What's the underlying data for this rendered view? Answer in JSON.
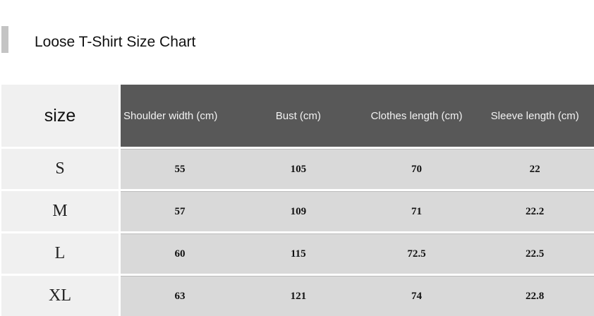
{
  "title": "Loose T-Shirt Size Chart",
  "table": {
    "size_header": "size",
    "headers": [
      "Shoulder width (cm)",
      "Bust (cm)",
      "Clothes length (cm)",
      "Sleeve length (cm)"
    ],
    "rows": [
      {
        "size": "S",
        "values": [
          "55",
          "105",
          "70",
          "22"
        ]
      },
      {
        "size": "M",
        "values": [
          "57",
          "109",
          "71",
          "22.2"
        ]
      },
      {
        "size": "L",
        "values": [
          "60",
          "115",
          "72.5",
          "22.5"
        ]
      },
      {
        "size": "XL",
        "values": [
          "63",
          "121",
          "74",
          "22.8"
        ]
      }
    ]
  }
}
